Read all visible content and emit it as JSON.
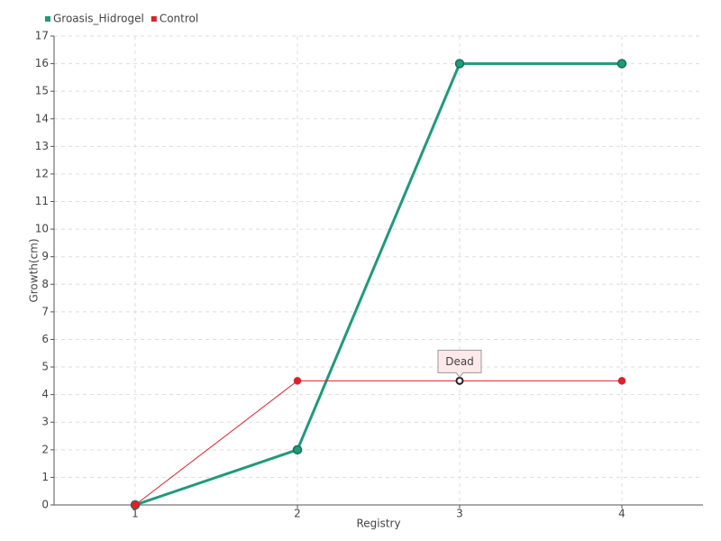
{
  "chart_data": {
    "type": "line",
    "x_label": "Registry",
    "y_label": "Growth(cm)",
    "categories": [
      "1",
      "2",
      "3",
      "4"
    ],
    "series": [
      {
        "name": "Groasis_Hidrogel",
        "color": "#1f9a7a",
        "values": [
          0,
          2,
          16,
          16
        ]
      },
      {
        "name": "Control",
        "color": "#e0202a",
        "values": [
          0,
          4.5,
          4.5,
          4.5
        ]
      }
    ],
    "ylim": [
      0,
      17
    ],
    "yticks": [
      0,
      1,
      2,
      3,
      4,
      5,
      6,
      7,
      8,
      9,
      10,
      11,
      12,
      13,
      14,
      15,
      16,
      17
    ],
    "grid": true,
    "legend": "top-left",
    "annotations": [
      {
        "text": "Dead",
        "series": "Control",
        "category": "3"
      }
    ]
  }
}
